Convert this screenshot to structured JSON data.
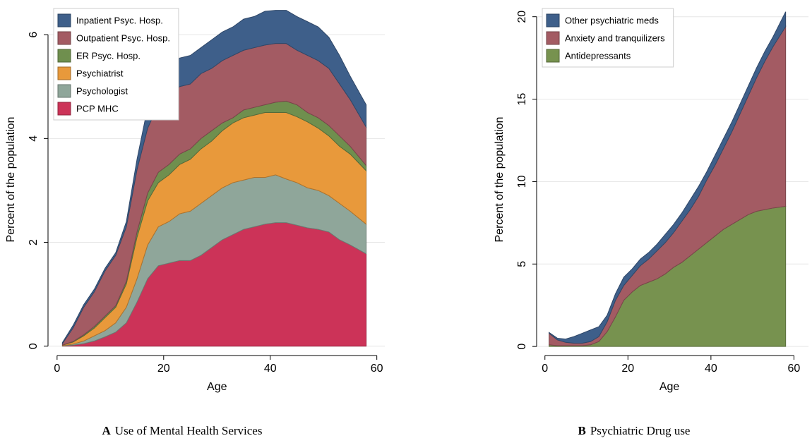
{
  "chart_data": [
    {
      "type": "area",
      "stacked": true,
      "grid": true,
      "legend": "upper left",
      "x_label": "Age",
      "y_label": "Percent of the population",
      "caption_label": "A",
      "caption": "Use of Mental Health Services",
      "xlim": [
        -1.7,
        61.5
      ],
      "ylim": [
        -0.18,
        6.6
      ],
      "xticks": [
        0,
        20,
        40,
        60
      ],
      "yticks": [
        0,
        2,
        4,
        6
      ],
      "x": [
        1,
        3,
        5,
        7,
        9,
        11,
        13,
        15,
        17,
        19,
        21,
        23,
        25,
        27,
        29,
        31,
        33,
        35,
        37,
        39,
        41,
        43,
        45,
        47,
        49,
        51,
        53,
        55,
        58
      ],
      "series": [
        {
          "name": "PCP MHC",
          "color": "#cc3358",
          "values": [
            0,
            0.02,
            0.05,
            0.1,
            0.18,
            0.27,
            0.45,
            0.85,
            1.3,
            1.55,
            1.6,
            1.65,
            1.65,
            1.75,
            1.9,
            2.05,
            2.15,
            2.25,
            2.3,
            2.35,
            2.38,
            2.38,
            2.33,
            2.28,
            2.25,
            2.2,
            2.05,
            1.95,
            1.78
          ]
        },
        {
          "name": "Psychologist",
          "color": "#8fa69a",
          "values": [
            0.01,
            0.02,
            0.05,
            0.1,
            0.12,
            0.18,
            0.3,
            0.45,
            0.65,
            0.75,
            0.8,
            0.9,
            0.95,
            1.0,
            1.0,
            1.0,
            1.0,
            0.95,
            0.95,
            0.9,
            0.92,
            0.84,
            0.82,
            0.77,
            0.75,
            0.7,
            0.7,
            0.65,
            0.57
          ]
        },
        {
          "name": "Psychiatrist",
          "color": "#e8993b",
          "values": [
            0.01,
            0.04,
            0.1,
            0.15,
            0.25,
            0.3,
            0.45,
            0.8,
            0.85,
            0.85,
            0.9,
            0.95,
            1.0,
            1.05,
            1.05,
            1.1,
            1.15,
            1.2,
            1.2,
            1.25,
            1.2,
            1.28,
            1.27,
            1.27,
            1.2,
            1.15,
            1.1,
            1.1,
            1.03
          ]
        },
        {
          "name": "ER Psyc. Hosp.",
          "color": "#6f8f4e",
          "values": [
            0,
            0.01,
            0.02,
            0.03,
            0.03,
            0.03,
            0.05,
            0.1,
            0.15,
            0.2,
            0.2,
            0.2,
            0.2,
            0.2,
            0.2,
            0.15,
            0.1,
            0.15,
            0.15,
            0.15,
            0.2,
            0.22,
            0.23,
            0.18,
            0.2,
            0.2,
            0.2,
            0.15,
            0.1
          ]
        },
        {
          "name": "Outpatient Psyc. Hosp.",
          "color": "#a35b63",
          "values": [
            0.03,
            0.26,
            0.53,
            0.67,
            0.87,
            0.97,
            1.05,
            1.2,
            1.25,
            1.3,
            1.3,
            1.3,
            1.25,
            1.25,
            1.2,
            1.2,
            1.2,
            1.15,
            1.15,
            1.15,
            1.13,
            1.11,
            1.05,
            1.1,
            1.1,
            1.1,
            1.0,
            0.9,
            0.74
          ]
        },
        {
          "name": "Inpatient Psyc. Hosp.",
          "color": "#3e5f8a",
          "values": [
            0.02,
            0.05,
            0.05,
            0.05,
            0.05,
            0.05,
            0.1,
            0.2,
            0.4,
            0.5,
            0.5,
            0.55,
            0.55,
            0.5,
            0.55,
            0.55,
            0.55,
            0.6,
            0.6,
            0.65,
            0.64,
            0.64,
            0.65,
            0.65,
            0.65,
            0.6,
            0.55,
            0.45,
            0.43
          ]
        }
      ]
    },
    {
      "type": "area",
      "stacked": true,
      "grid": true,
      "legend": "upper left",
      "x_label": "Age",
      "y_label": "Percent of the population",
      "caption_label": "B",
      "caption": "Psychiatric Drug use",
      "xlim": [
        -2,
        63.5
      ],
      "ylim": [
        -0.55,
        20.8
      ],
      "xticks": [
        0,
        20,
        40,
        60
      ],
      "yticks": [
        0,
        5,
        10,
        15,
        20
      ],
      "x": [
        1,
        3,
        5,
        7,
        9,
        11,
        13,
        15,
        17,
        19,
        21,
        23,
        25,
        27,
        29,
        31,
        33,
        35,
        37,
        39,
        41,
        43,
        45,
        47,
        49,
        51,
        53,
        55,
        58
      ],
      "series": [
        {
          "name": "Antidepressants",
          "color": "#77924f",
          "values": [
            0.1,
            0.05,
            0.05,
            0.05,
            0.05,
            0.1,
            0.3,
            0.9,
            1.8,
            2.8,
            3.3,
            3.7,
            3.9,
            4.1,
            4.4,
            4.8,
            5.1,
            5.5,
            5.9,
            6.3,
            6.7,
            7.1,
            7.4,
            7.7,
            8.0,
            8.2,
            8.3,
            8.4,
            8.5
          ]
        },
        {
          "name": "Anxiety and tranquilizers",
          "color": "#a35b63",
          "values": [
            0.7,
            0.35,
            0.2,
            0.15,
            0.15,
            0.2,
            0.3,
            0.6,
            1.0,
            0.9,
            1.0,
            1.2,
            1.4,
            1.7,
            1.9,
            2.1,
            2.5,
            2.8,
            3.2,
            3.8,
            4.3,
            4.9,
            5.6,
            6.4,
            7.2,
            8.1,
            9.0,
            9.8,
            10.9
          ]
        },
        {
          "name": "Other psychiatric meds",
          "color": "#3e5f8a",
          "values": [
            0.05,
            0.1,
            0.2,
            0.4,
            0.6,
            0.7,
            0.6,
            0.4,
            0.4,
            0.5,
            0.4,
            0.4,
            0.4,
            0.4,
            0.5,
            0.5,
            0.5,
            0.6,
            0.6,
            0.5,
            0.6,
            0.6,
            0.6,
            0.6,
            0.6,
            0.6,
            0.6,
            0.6,
            0.9
          ]
        }
      ]
    }
  ]
}
